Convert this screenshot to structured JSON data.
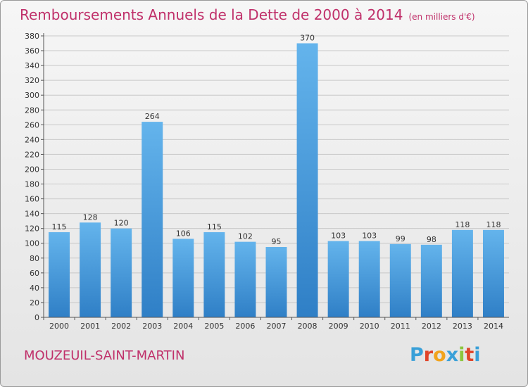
{
  "title": "Remboursements Annuels de la Dette de 2000 à 2014",
  "subtitle": "(en milliers d'€)",
  "commune": "MOUZEUIL-SAINT-MARTIN",
  "logo": {
    "letters": [
      "P",
      "r",
      "o",
      "x",
      "i",
      "t",
      "i"
    ],
    "colors": [
      "#3aa0d8",
      "#e0452a",
      "#f2a31b",
      "#3aa0d8",
      "#8cc63e",
      "#e0452a",
      "#3aa0d8"
    ]
  },
  "colors": {
    "bar_light": "#64b4ec",
    "bar_dark": "#2f7fc6",
    "title": "#c0306a"
  },
  "chart_data": {
    "type": "bar",
    "categories": [
      "2000",
      "2001",
      "2002",
      "2003",
      "2004",
      "2005",
      "2006",
      "2007",
      "2008",
      "2009",
      "2010",
      "2011",
      "2012",
      "2013",
      "2014"
    ],
    "values": [
      115,
      128,
      120,
      264,
      106,
      115,
      102,
      95,
      370,
      103,
      103,
      99,
      98,
      118,
      118
    ],
    "value_labels": [
      "115",
      "128",
      "120",
      "264",
      "106",
      "115",
      "102",
      "95",
      "370",
      "103",
      "103",
      "99",
      "98",
      "118",
      "118"
    ],
    "title": "Remboursements Annuels de la Dette de 2000 à 2014",
    "xlabel": "",
    "ylabel": "",
    "ylim": [
      0,
      380
    ],
    "yticks": [
      "0",
      "20",
      "40",
      "60",
      "80",
      "100",
      "120",
      "140",
      "160",
      "180",
      "200",
      "220",
      "240",
      "260",
      "280",
      "300",
      "320",
      "340",
      "360",
      "380"
    ],
    "grid": true
  }
}
